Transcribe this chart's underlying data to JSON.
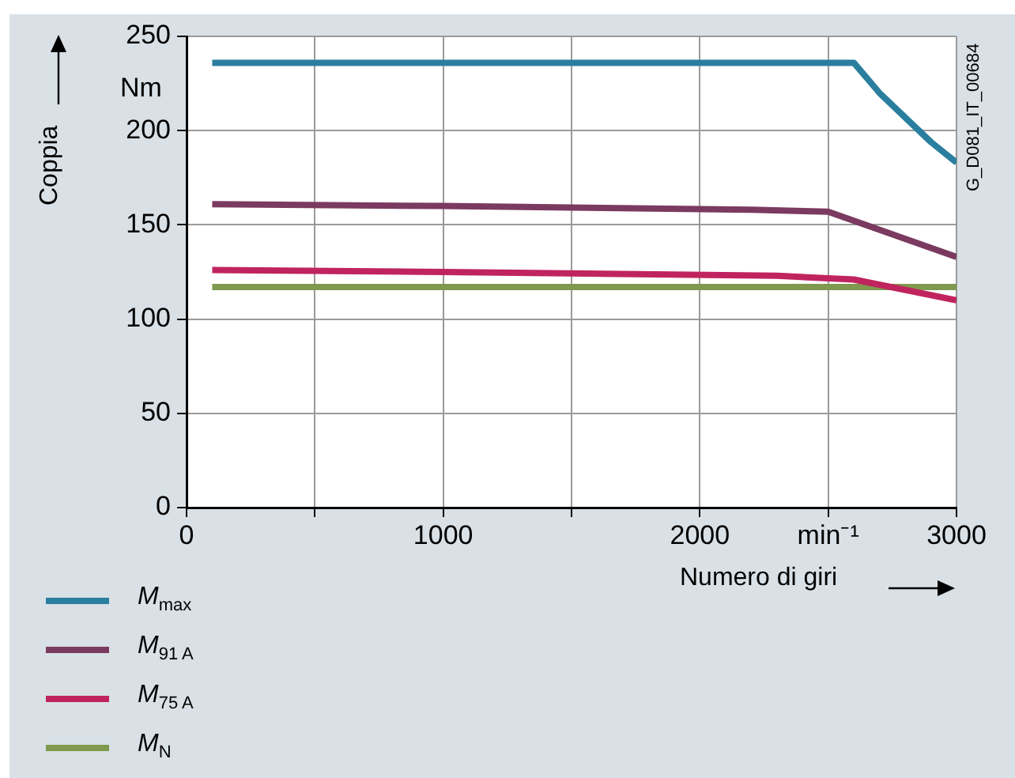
{
  "chart_data": {
    "type": "line",
    "xlabel": "Numero di giri",
    "ylabel": "Coppia",
    "xlim": [
      0,
      3000
    ],
    "xticks": [
      0,
      {
        "value": 500,
        "label": null
      },
      1000,
      {
        "value": 1500,
        "label": null
      },
      2000,
      {
        "value": 2500,
        "label": "min⁻¹"
      },
      3000
    ],
    "ylim": [
      0,
      250
    ],
    "yticks": [
      0,
      50,
      100,
      150,
      200,
      250
    ],
    "grid": true,
    "legend": "bottom left",
    "marker": "none",
    "line_style": "solid",
    "annotations": [
      "Nm",
      "G_D081_IT_00684"
    ],
    "series": [
      {
        "name": "M$_{max}$",
        "color": "#2a7f9e",
        "x": [
          100,
          2600,
          2700,
          2900,
          3000
        ],
        "values": [
          236,
          236,
          220,
          194,
          183
        ]
      },
      {
        "name": "M$_{91 A}$",
        "color": "#7b3a60",
        "x": [
          100,
          1000,
          2200,
          2500,
          3000
        ],
        "values": [
          161,
          160,
          158,
          157,
          133
        ]
      },
      {
        "name": "M$_{75 A}$",
        "color": "#c0245f",
        "x": [
          100,
          1000,
          2300,
          2600,
          3000
        ],
        "values": [
          126,
          125,
          123,
          121,
          110
        ]
      },
      {
        "name": "M$_{N}$",
        "color": "#7f9a4e",
        "x": [
          100,
          3000
        ],
        "values": [
          117,
          117
        ]
      }
    ]
  }
}
